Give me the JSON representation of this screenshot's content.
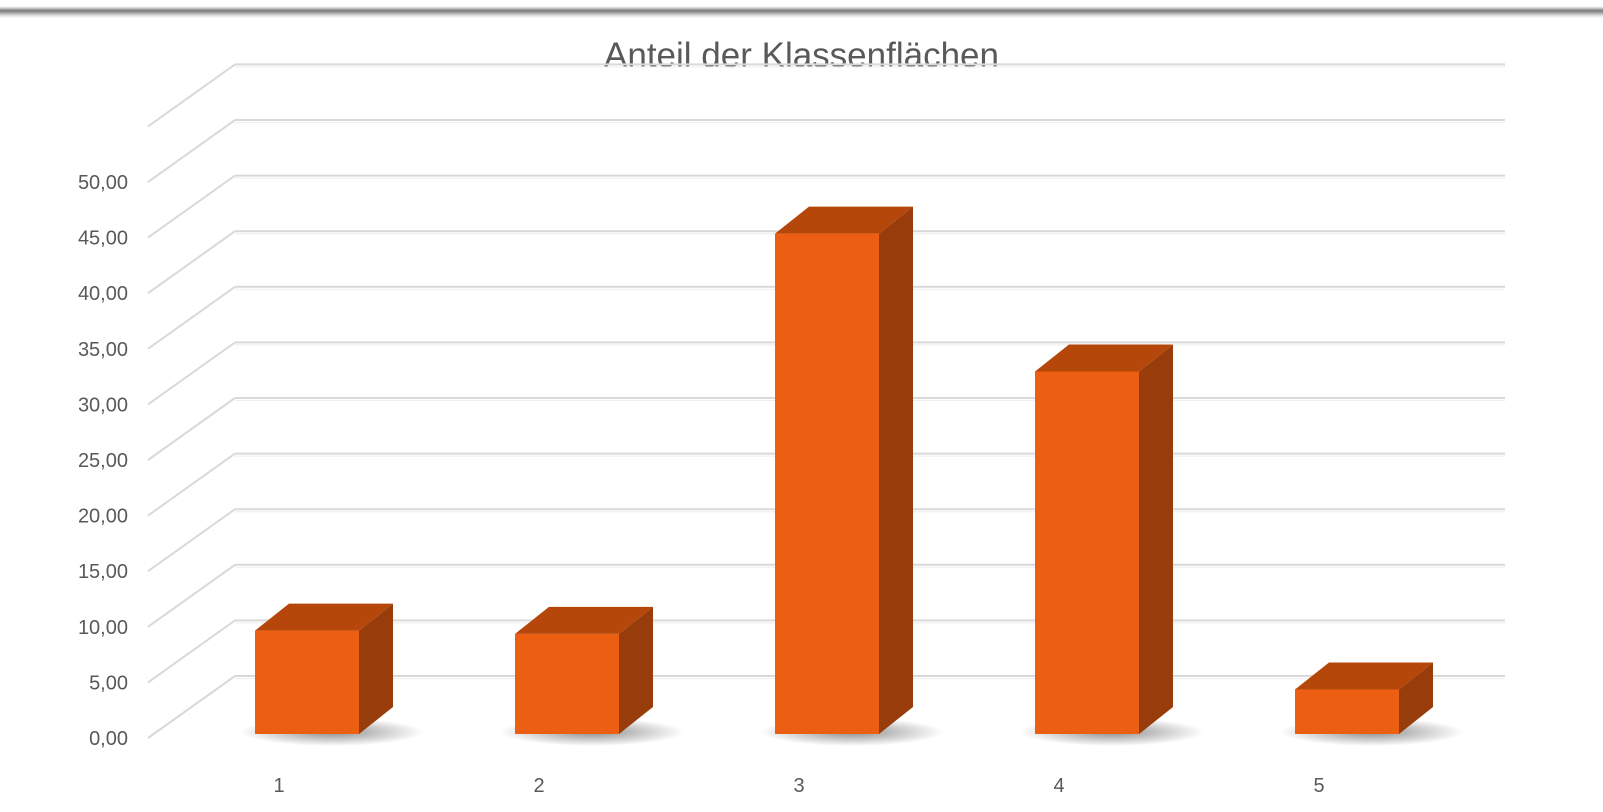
{
  "chart_data": {
    "type": "bar",
    "title": "Anteil der Klassenflächen",
    "xlabel": "",
    "ylabel": "",
    "categories": [
      "1",
      "2",
      "3",
      "4",
      "5"
    ],
    "values": [
      9.3,
      9.0,
      45.0,
      32.6,
      4.0
    ],
    "ylim": [
      0,
      55
    ],
    "yticks": [
      "0,00",
      "5,00",
      "10,00",
      "15,00",
      "20,00",
      "25,00",
      "30,00",
      "35,00",
      "40,00",
      "45,00",
      "50,00"
    ],
    "grid": true,
    "legend": "none",
    "colors": {
      "bar_front": "#EC5F12",
      "bar_top": "#B5470B",
      "bar_side": "#983C0B",
      "grid": "#D9D9D9",
      "text": "#595959"
    }
  }
}
